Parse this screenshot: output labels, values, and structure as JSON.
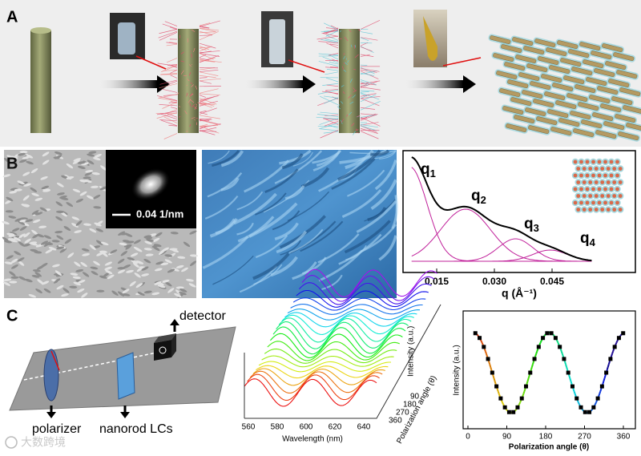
{
  "panels": {
    "a": {
      "label": "A"
    },
    "b": {
      "label": "B",
      "inset_scale": "0.04 1/nm",
      "peaks": [
        {
          "symbol": "q",
          "index": "1"
        },
        {
          "symbol": "q",
          "index": "2"
        },
        {
          "symbol": "q",
          "index": "3"
        },
        {
          "symbol": "q",
          "index": "4"
        }
      ],
      "xticks": [
        "0.015",
        "0.030",
        "0.045"
      ],
      "xlabel": "q (Å⁻¹)"
    },
    "c": {
      "label": "C",
      "detector": "detector",
      "polarizer": "polarizer",
      "sample": "nanorod LCs",
      "spectra": {
        "xticks": [
          "560",
          "580",
          "600",
          "620",
          "640"
        ],
        "xlabel": "Wavelength (nm)",
        "zlabel": "Intensity (a.u.)",
        "angles": [
          "90",
          "180",
          "270",
          "360"
        ],
        "angle_label": "Polarization angle (θ)"
      },
      "polar": {
        "xticks": [
          "0",
          "90",
          "180",
          "270",
          "360"
        ],
        "xlabel": "Polarization angle (θ)",
        "ylabel": "Intensity (a.u.)"
      }
    }
  },
  "watermark": "大数跨境"
}
